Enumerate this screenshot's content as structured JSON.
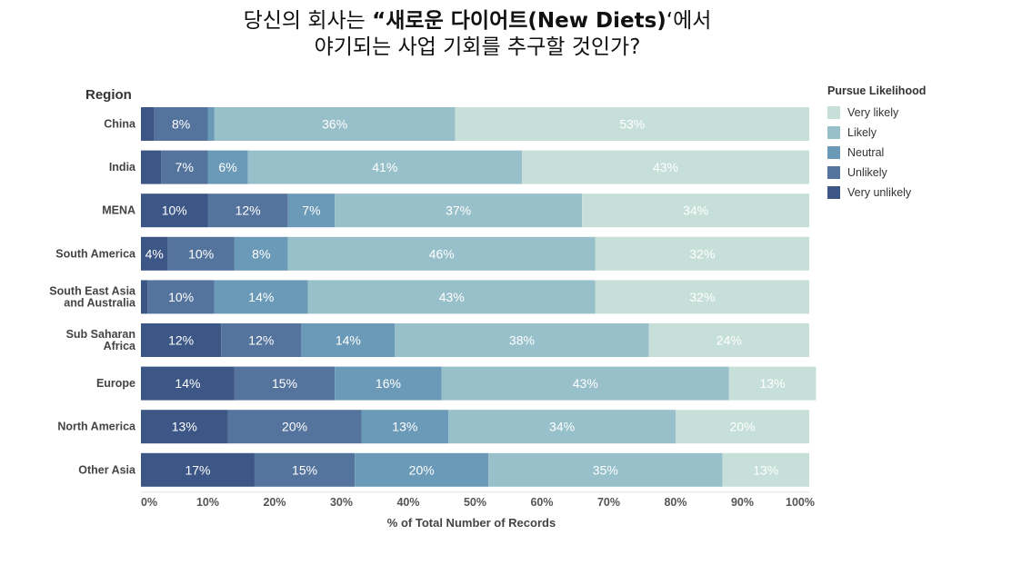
{
  "title": {
    "line1_pre": "당신의 회사는 ",
    "line1_bold": "“새로운 다이어트(New Diets)",
    "line1_post": "‘에서",
    "line2": "야기되는 사업 기회를 추구할 것인가?"
  },
  "chart_data": {
    "type": "bar",
    "orientation": "horizontal",
    "stacked": true,
    "normalized": true,
    "title": "당신의 회사는 “새로운 다이어트(New Diets)‘에서 야기되는 사업 기회를 추구할 것인가?",
    "ylabel": "Region",
    "xlabel": "% of Total Number of Records",
    "xlim": [
      0,
      100
    ],
    "x_ticks": [
      "0%",
      "10%",
      "20%",
      "30%",
      "40%",
      "50%",
      "60%",
      "70%",
      "80%",
      "90%",
      "100%"
    ],
    "categories": [
      "China",
      "India",
      "MENA",
      "South America",
      "South East Asia\nand Australia",
      "Sub Saharan\nAfrica",
      "Europe",
      "North America",
      "Other Asia"
    ],
    "legend_title": "Pursue Likelihood",
    "legend_position": "right",
    "series": [
      {
        "name": "Very unlikely",
        "color": "#3c5685",
        "values": [
          2,
          3,
          10,
          4,
          1,
          12,
          14,
          13,
          17
        ]
      },
      {
        "name": "Unlikely",
        "color": "#54739d",
        "values": [
          8,
          7,
          12,
          10,
          10,
          12,
          15,
          20,
          15
        ]
      },
      {
        "name": "Neutral",
        "color": "#6b9ab8",
        "values": [
          1,
          6,
          7,
          8,
          14,
          14,
          16,
          13,
          20
        ]
      },
      {
        "name": "Likely",
        "color": "#98c0ca",
        "values": [
          36,
          41,
          37,
          46,
          43,
          38,
          43,
          34,
          35
        ]
      },
      {
        "name": "Very likely",
        "color": "#c6e0d9",
        "values": [
          53,
          43,
          34,
          32,
          32,
          24,
          13,
          20,
          13
        ]
      }
    ],
    "data_labels": [
      [
        null,
        "8%",
        null,
        "36%",
        "53%"
      ],
      [
        null,
        "7%",
        "6%",
        "41%",
        "43%"
      ],
      [
        "10%",
        "12%",
        "7%",
        "37%",
        "34%"
      ],
      [
        "4%",
        "10%",
        "8%",
        "46%",
        "32%"
      ],
      [
        null,
        "10%",
        "14%",
        "43%",
        "32%"
      ],
      [
        "12%",
        "12%",
        "14%",
        "38%",
        "24%"
      ],
      [
        "14%",
        "15%",
        "16%",
        "43%",
        "13%"
      ],
      [
        "13%",
        "20%",
        "13%",
        "34%",
        "20%"
      ],
      [
        "17%",
        "15%",
        "20%",
        "35%",
        "13%"
      ]
    ]
  }
}
